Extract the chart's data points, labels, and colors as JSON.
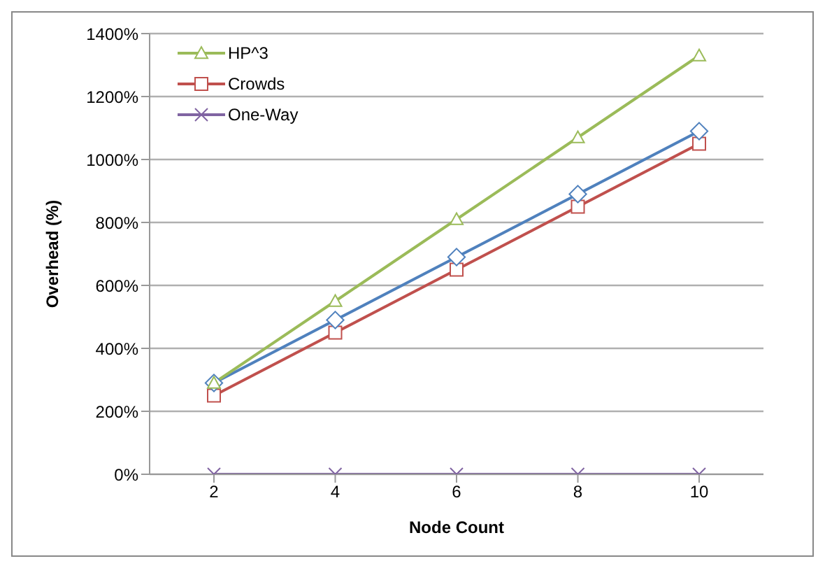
{
  "chart_data": {
    "type": "line",
    "xlabel": "Node Count",
    "ylabel": "Overhead (%)",
    "categories": [
      "2",
      "4",
      "6",
      "8",
      "10"
    ],
    "series": [
      {
        "name": "HP^3",
        "color": "#9bbb59",
        "marker": "triangle",
        "values": [
          290,
          550,
          810,
          1070,
          1330
        ]
      },
      {
        "color": "#4f81bd",
        "marker": "diamond",
        "values": [
          290,
          490,
          690,
          890,
          1090
        ]
      },
      {
        "name": "Crowds",
        "color": "#c0504d",
        "marker": "square",
        "values": [
          250,
          450,
          650,
          850,
          1050
        ]
      },
      {
        "name": "One-Way",
        "color": "#8064a2",
        "marker": "cross",
        "values": [
          0,
          0,
          0,
          0,
          0
        ]
      }
    ],
    "ylim": [
      0,
      1400
    ],
    "yticks": [
      {
        "value": 0,
        "label": "0%"
      },
      {
        "value": 200,
        "label": "200%"
      },
      {
        "value": 400,
        "label": "400%"
      },
      {
        "value": 600,
        "label": "600%"
      },
      {
        "value": 800,
        "label": "800%"
      },
      {
        "value": 1000,
        "label": "1000%"
      },
      {
        "value": 1200,
        "label": "1200%"
      },
      {
        "value": 1400,
        "label": "1400%"
      }
    ],
    "grid": "y",
    "legend": "top left",
    "line_style": "solid"
  }
}
